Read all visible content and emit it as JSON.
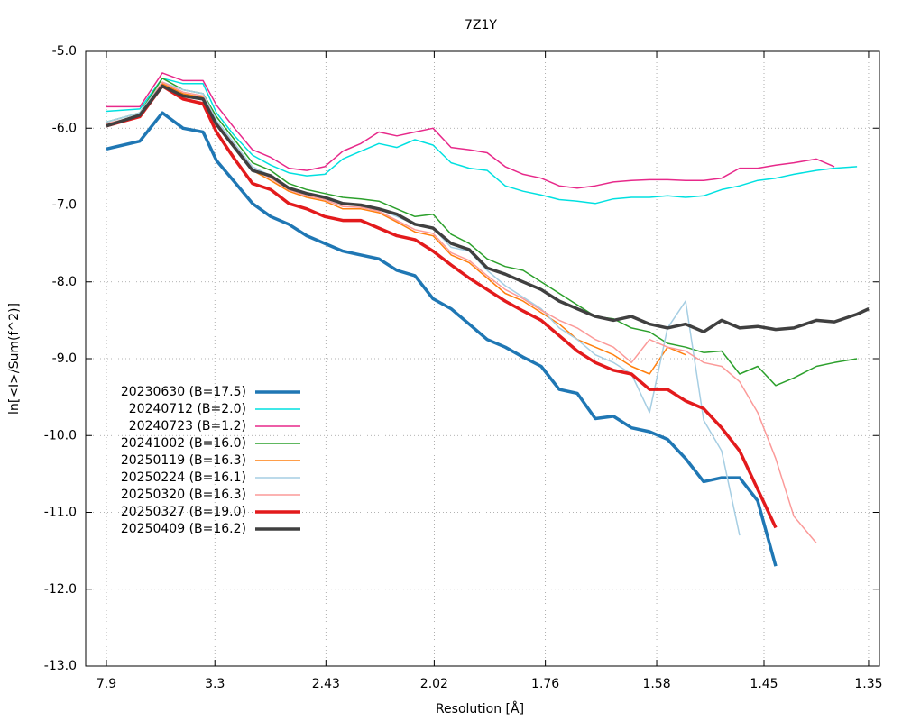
{
  "chart_data": {
    "type": "line",
    "title": "7Z1Y",
    "xlabel": "Resolution [Å]",
    "ylabel": "ln[<I>/Sum(f^2)]",
    "grid": true,
    "legend": "lower left",
    "xlim": [
      0.0015,
      0.5563
    ],
    "ylim": [
      -13,
      -5
    ],
    "xticks": [
      {
        "value": 0.016,
        "label": "7.9"
      },
      {
        "value": 0.0918,
        "label": "3.3"
      },
      {
        "value": 0.1694,
        "label": "2.43"
      },
      {
        "value": 0.2451,
        "label": "2.02"
      },
      {
        "value": 0.3228,
        "label": "1.76"
      },
      {
        "value": 0.4006,
        "label": "1.58"
      },
      {
        "value": 0.4756,
        "label": "1.45"
      },
      {
        "value": 0.5487,
        "label": "1.35"
      }
    ],
    "yticks": [
      {
        "value": -13,
        "label": "-13.0"
      },
      {
        "value": -12,
        "label": "-12.0"
      },
      {
        "value": -11,
        "label": "-11.0"
      },
      {
        "value": -10,
        "label": "-10.0"
      },
      {
        "value": -9,
        "label": "-9.0"
      },
      {
        "value": -8,
        "label": "-8.0"
      },
      {
        "value": -7,
        "label": "-7.0"
      },
      {
        "value": -6,
        "label": "-6.0"
      },
      {
        "value": -5,
        "label": "-5.0"
      }
    ],
    "x": [
      0.016,
      0.0393,
      0.0551,
      0.0696,
      0.0835,
      0.0929,
      0.1055,
      0.1181,
      0.1308,
      0.1434,
      0.156,
      0.1686,
      0.1812,
      0.1938,
      0.2064,
      0.219,
      0.2316,
      0.2443,
      0.2569,
      0.2695,
      0.2821,
      0.2947,
      0.3073,
      0.3199,
      0.3325,
      0.3451,
      0.3577,
      0.3704,
      0.383,
      0.3956,
      0.4082,
      0.4208,
      0.4334,
      0.446,
      0.4586,
      0.4712,
      0.4838,
      0.4965,
      0.5122,
      0.5248,
      0.5406,
      0.5488
    ],
    "series": [
      {
        "name": "20230630 (B=17.5)",
        "color": "#1f77b4",
        "line_width": 3.5,
        "values": [
          -6.27,
          -6.17,
          -5.8,
          -6.0,
          -6.05,
          -6.42,
          -6.7,
          -6.98,
          -7.15,
          -7.25,
          -7.4,
          -7.5,
          -7.6,
          -7.65,
          -7.7,
          -7.85,
          -7.92,
          -8.22,
          -8.35,
          -8.55,
          -8.75,
          -8.85,
          -8.98,
          -9.1,
          -9.4,
          -9.45,
          -9.78,
          -9.75,
          -9.9,
          -9.95,
          -10.05,
          -10.3,
          -10.6,
          -10.55,
          -10.55,
          -10.85,
          -11.7,
          null,
          null,
          null,
          null,
          null
        ]
      },
      {
        "name": "20240712 (B=2.0)",
        "color": "#00e0e0",
        "line_width": 1.5,
        "values": [
          -5.78,
          -5.75,
          -5.35,
          -5.42,
          -5.42,
          -5.8,
          -6.1,
          -6.35,
          -6.48,
          -6.58,
          -6.62,
          -6.6,
          -6.4,
          -6.3,
          -6.2,
          -6.25,
          -6.15,
          -6.22,
          -6.45,
          -6.52,
          -6.55,
          -6.75,
          -6.82,
          -6.87,
          -6.93,
          -6.95,
          -6.98,
          -6.92,
          -6.9,
          -6.9,
          -6.88,
          -6.9,
          -6.88,
          -6.8,
          -6.75,
          -6.68,
          -6.65,
          -6.6,
          -6.55,
          -6.52,
          -6.5,
          null
        ]
      },
      {
        "name": "20240723 (B=1.2)",
        "color": "#e7298a",
        "line_width": 1.5,
        "values": [
          -5.72,
          -5.72,
          -5.28,
          -5.38,
          -5.38,
          -5.7,
          -6.0,
          -6.28,
          -6.38,
          -6.52,
          -6.55,
          -6.5,
          -6.3,
          -6.2,
          -6.05,
          -6.1,
          -6.05,
          -6.0,
          -6.25,
          -6.28,
          -6.32,
          -6.5,
          -6.6,
          -6.65,
          -6.75,
          -6.78,
          -6.75,
          -6.7,
          -6.68,
          -6.67,
          -6.67,
          -6.68,
          -6.68,
          -6.65,
          -6.52,
          -6.52,
          -6.48,
          -6.45,
          -6.4,
          -6.5,
          null,
          null
        ]
      },
      {
        "name": "20241002 (B=16.0)",
        "color": "#2ca02c",
        "line_width": 1.5,
        "values": [
          -5.92,
          -5.8,
          -5.35,
          -5.5,
          -5.55,
          -5.85,
          -6.15,
          -6.45,
          -6.55,
          -6.72,
          -6.8,
          -6.85,
          -6.9,
          -6.92,
          -6.95,
          -7.05,
          -7.15,
          -7.12,
          -7.38,
          -7.5,
          -7.7,
          -7.8,
          -7.85,
          -8.0,
          -8.15,
          -8.3,
          -8.45,
          -8.48,
          -8.6,
          -8.65,
          -8.8,
          -8.85,
          -8.92,
          -8.9,
          -9.2,
          -9.1,
          -9.35,
          -9.25,
          -9.1,
          -9.05,
          -9.0,
          null
        ]
      },
      {
        "name": "20250119 (B=16.3)",
        "color": "#ff7f0e",
        "line_width": 1.5,
        "values": [
          -5.95,
          -5.85,
          -5.42,
          -5.55,
          -5.6,
          -5.95,
          -6.25,
          -6.55,
          -6.68,
          -6.82,
          -6.9,
          -6.95,
          -7.05,
          -7.05,
          -7.1,
          -7.22,
          -7.35,
          -7.4,
          -7.65,
          -7.75,
          -7.95,
          -8.15,
          -8.25,
          -8.4,
          -8.55,
          -8.75,
          -8.85,
          -8.95,
          -9.1,
          -9.2,
          -8.85,
          -8.95,
          null,
          null,
          null,
          null,
          null,
          null,
          null,
          null,
          null,
          null
        ]
      },
      {
        "name": "20250224 (B=16.1)",
        "color": "#a6cee3",
        "line_width": 1.5,
        "values": [
          -5.92,
          -5.8,
          -5.4,
          -5.5,
          -5.55,
          -5.9,
          -6.2,
          -6.5,
          -6.62,
          -6.78,
          -6.85,
          -6.9,
          -6.98,
          -7.0,
          -7.05,
          -7.15,
          -7.25,
          -7.3,
          -7.55,
          -7.6,
          -7.85,
          -8.05,
          -8.2,
          -8.35,
          -8.6,
          -8.75,
          -8.95,
          -9.05,
          -9.2,
          -9.7,
          -8.6,
          -8.25,
          -9.8,
          -10.2,
          -11.3,
          null,
          null,
          null,
          null,
          null,
          null,
          null
        ]
      },
      {
        "name": "20250320 (B=16.3)",
        "color": "#fb9a99",
        "line_width": 1.5,
        "values": [
          -5.94,
          -5.84,
          -5.4,
          -5.53,
          -5.58,
          -5.93,
          -6.23,
          -6.53,
          -6.65,
          -6.8,
          -6.88,
          -6.93,
          -7.02,
          -7.03,
          -7.08,
          -7.2,
          -7.32,
          -7.37,
          -7.62,
          -7.72,
          -7.92,
          -8.1,
          -8.22,
          -8.37,
          -8.5,
          -8.6,
          -8.75,
          -8.85,
          -9.05,
          -8.75,
          -8.85,
          -8.9,
          -9.05,
          -9.1,
          -9.3,
          -9.7,
          -10.3,
          -11.05,
          -11.4,
          null,
          null,
          null
        ]
      },
      {
        "name": "20250327 (B=19.0)",
        "color": "#e31a1c",
        "line_width": 3.5,
        "values": [
          -5.97,
          -5.85,
          -5.45,
          -5.62,
          -5.68,
          -6.05,
          -6.4,
          -6.72,
          -6.8,
          -6.98,
          -7.05,
          -7.15,
          -7.2,
          -7.2,
          -7.3,
          -7.4,
          -7.45,
          -7.6,
          -7.78,
          -7.95,
          -8.1,
          -8.25,
          -8.38,
          -8.5,
          -8.7,
          -8.9,
          -9.05,
          -9.15,
          -9.2,
          -9.4,
          -9.4,
          -9.55,
          -9.65,
          -9.9,
          -10.2,
          -10.7,
          -11.2,
          null,
          null,
          null,
          null,
          null
        ]
      },
      {
        "name": "20250409 (B=16.2)",
        "color": "#404040",
        "line_width": 3.5,
        "values": [
          -5.97,
          -5.83,
          -5.45,
          -5.58,
          -5.62,
          -5.95,
          -6.25,
          -6.55,
          -6.62,
          -6.78,
          -6.85,
          -6.9,
          -6.98,
          -7.0,
          -7.05,
          -7.12,
          -7.25,
          -7.3,
          -7.5,
          -7.58,
          -7.82,
          -7.9,
          -8.0,
          -8.1,
          -8.25,
          -8.35,
          -8.45,
          -8.5,
          -8.45,
          -8.55,
          -8.6,
          -8.55,
          -8.65,
          -8.5,
          -8.6,
          -8.58,
          -8.62,
          -8.6,
          -8.5,
          -8.52,
          -8.42,
          -8.35
        ]
      }
    ]
  }
}
